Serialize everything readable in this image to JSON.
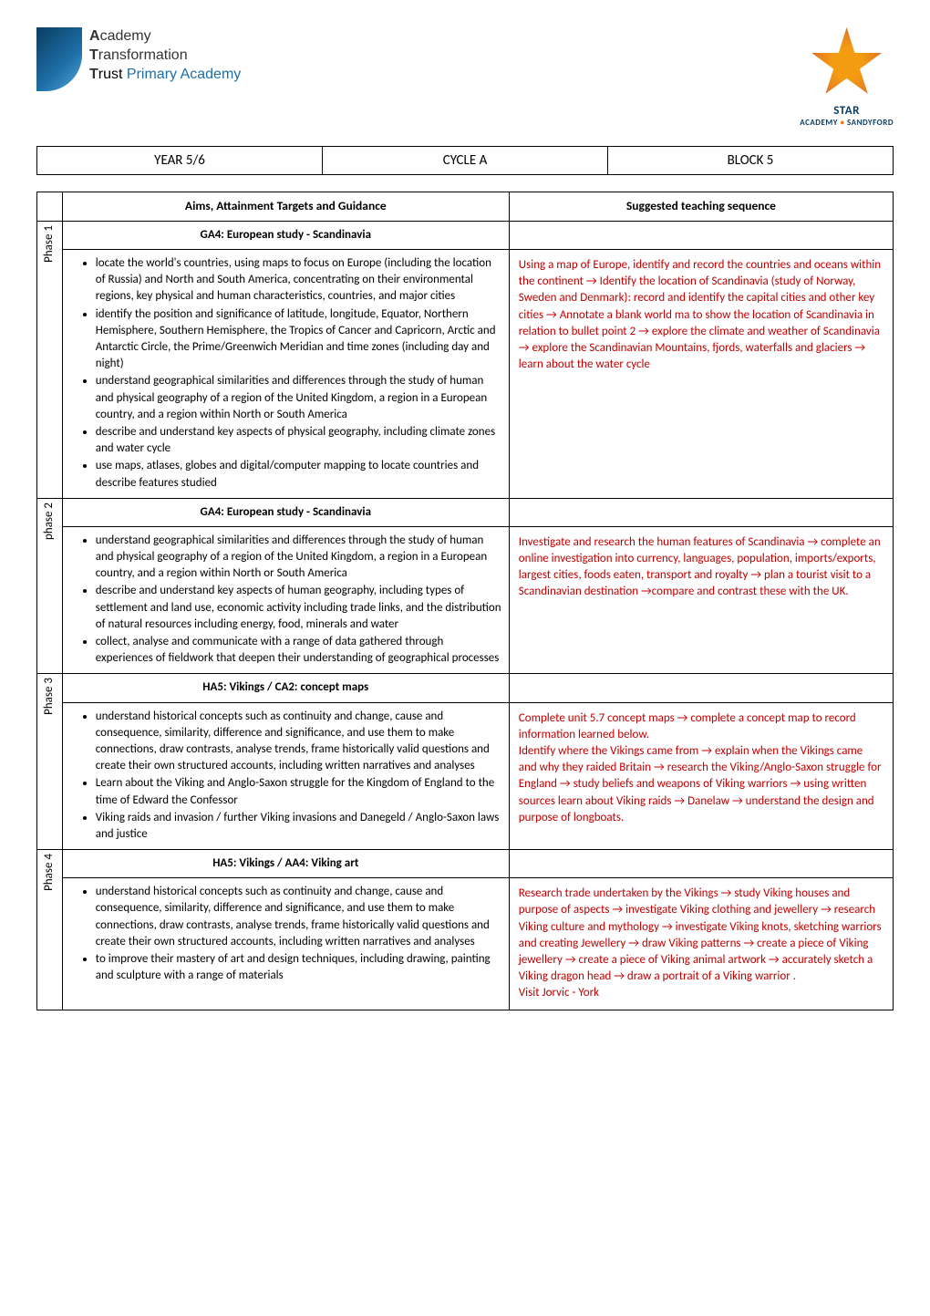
{
  "logo_left": {
    "line1_bold": "A",
    "line1_rest": "cademy",
    "line2_bold": "T",
    "line2_rest": "ransformation",
    "line3_bold": "T",
    "line3_rest": "rust ",
    "line3_primary": "Primary Academy"
  },
  "logo_right": {
    "text_star": "STAR",
    "text_sub_left": "ACADEMY",
    "text_sub_right": "SANDYFORD"
  },
  "info_bar": {
    "year": "YEAR 5/6",
    "cycle": "CYCLE A",
    "block": "BLOCK 5"
  },
  "table_headers": {
    "aims": "Aims, Attainment Targets and Guidance",
    "sequence": "Suggested teaching sequence"
  },
  "phases": [
    {
      "label": "Phase 1",
      "subheader": "GA4: European study - Scandinavia",
      "aims": [
        "locate the world's countries, using maps to focus on Europe (including the location of Russia) and North and South America, concentrating on their environmental regions, key physical and human characteristics, countries, and major cities",
        "identify the position and significance of latitude, longitude, Equator, Northern Hemisphere, Southern Hemisphere, the Tropics of Cancer and Capricorn, Arctic and Antarctic Circle, the Prime/Greenwich Meridian and time zones (including day and night)",
        "understand geographical similarities and differences through the study of human and physical geography of a region of the United Kingdom, a region in a European country, and a region within North or South America",
        "describe and understand key aspects of physical geography, including climate zones and water cycle",
        "use maps, atlases, globes and digital/computer mapping to locate countries and describe features studied"
      ],
      "sequence": "Using a map of Europe, identify and record the countries and oceans within the continent → Identify the location of Scandinavia (study of Norway, Sweden and Denmark): record and identify the capital cities and other key cities → Annotate a blank world ma to show the location of Scandinavia in relation to bullet point 2 → explore the climate and weather of Scandinavia → explore the Scandinavian Mountains, fjords, waterfalls and glaciers → learn about the water cycle"
    },
    {
      "label": "phase 2",
      "subheader": "GA4: European study - Scandinavia",
      "aims": [
        "understand geographical similarities and differences through the study of human and physical geography of a region of the United Kingdom, a region in a European country, and a region within North or South America",
        "describe and understand key aspects of human geography, including types of settlement and land use, economic activity including trade links, and the distribution of natural resources including energy, food, minerals and water",
        "collect, analyse and communicate with a range of data gathered through experiences of fieldwork that deepen their understanding of geographical processes"
      ],
      "sequence": "Investigate and research the human features of Scandinavia → complete an online investigation into currency, languages, population, imports/exports, largest cities, foods eaten, transport and royalty → plan a tourist visit to a Scandinavian destination →compare and contrast these with the UK."
    },
    {
      "label": "Phase 3",
      "subheader": "HA5: Vikings / CA2: concept maps",
      "aims": [
        "understand historical concepts such as continuity and change, cause and consequence, similarity, difference and significance, and use them to make connections, draw contrasts, analyse trends, frame historically valid questions and create their own structured accounts, including written narratives and analyses",
        "Learn about the Viking and Anglo-Saxon struggle for the Kingdom of England to the time of Edward the Confessor",
        "Viking raids and invasion / further Viking invasions and Danegeld / Anglo-Saxon laws and justice"
      ],
      "sequence": "Complete unit 5.7 concept maps → complete a concept map to record information learned below.\nIdentify where the Vikings came from → explain when the Vikings came\nand why they raided Britain → research the Viking/Anglo-Saxon struggle for England → study beliefs and weapons of Viking warriors → using written sources learn about Viking raids → Danelaw → understand the design and purpose of longboats."
    },
    {
      "label": "Phase 4",
      "subheader": "HA5: Vikings / AA4: Viking art",
      "aims": [
        "understand historical concepts such as continuity and change, cause and consequence, similarity, difference and significance, and use them to make connections, draw contrasts, analyse trends, frame historically valid questions and create their own structured accounts, including written narratives and analyses",
        "to improve their mastery of art and design techniques, including drawing, painting and sculpture with a range of materials"
      ],
      "sequence": "Research trade undertaken by the Vikings → study Viking houses and purpose of aspects → investigate Viking clothing and jewellery → research Viking culture and mythology → investigate Viking knots, sketching warriors and creating Jewellery →  draw Viking patterns →  create a piece of Viking jewellery → create a piece of Viking animal artwork →  accurately sketch a Viking dragon head →  draw a portrait of a Viking warrior .\nVisit Jorvic - York"
    }
  ]
}
